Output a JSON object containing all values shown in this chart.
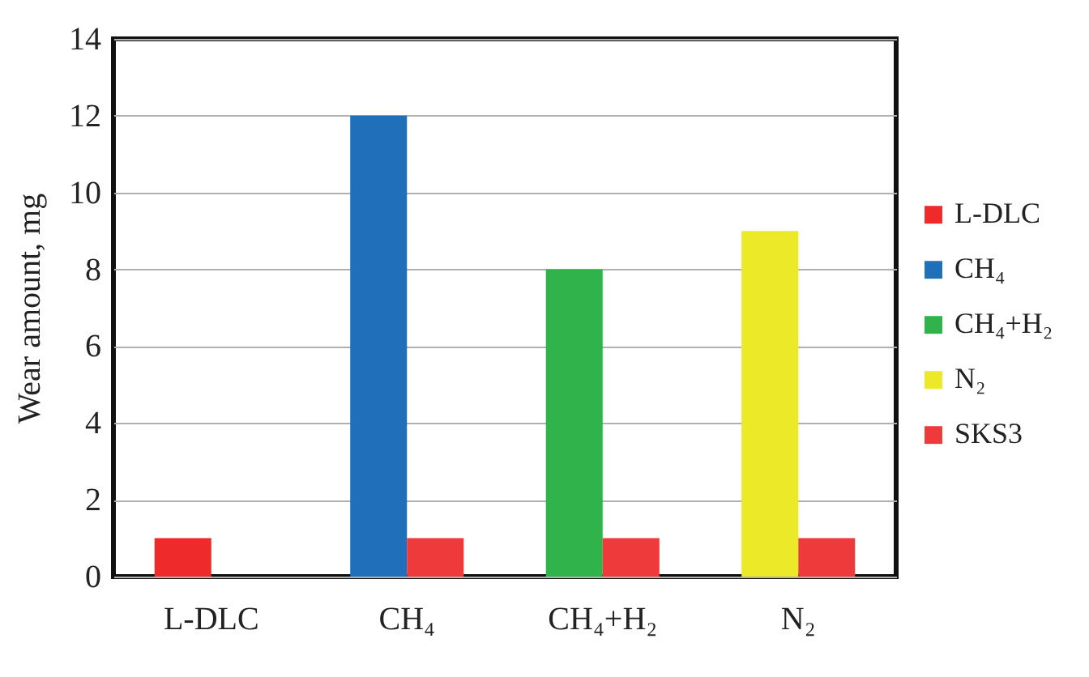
{
  "chart_data": {
    "type": "bar",
    "ylabel": "Wear amount, mg",
    "categories": [
      "L-DLC",
      "CH₄",
      "CH₄+H₂",
      "N₂"
    ],
    "series": [
      {
        "name": "L-DLC",
        "color": "#ee2a2a",
        "values": [
          1,
          null,
          null,
          null
        ]
      },
      {
        "name": "CH₄",
        "color": "#1f6fba",
        "values": [
          null,
          12,
          null,
          null
        ]
      },
      {
        "name": "CH₄+H₂",
        "color": "#2fb34a",
        "values": [
          null,
          null,
          8,
          null
        ]
      },
      {
        "name": "N₂",
        "color": "#ece928",
        "values": [
          null,
          null,
          null,
          9
        ]
      },
      {
        "name": "SKS3",
        "color": "#ee3a3a",
        "values": [
          null,
          1,
          1,
          1
        ]
      }
    ],
    "ylim": [
      0,
      14
    ],
    "yticks": [
      0,
      2,
      4,
      6,
      8,
      10,
      12,
      14
    ],
    "grid": "y",
    "legend": "right"
  }
}
